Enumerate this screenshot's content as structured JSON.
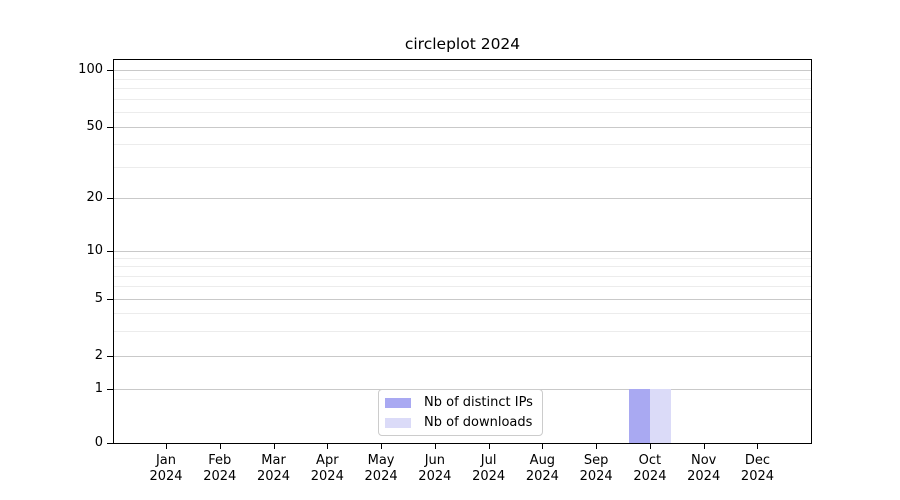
{
  "title": "circleplot 2024",
  "chart_data": {
    "type": "bar",
    "title": "circleplot 2024",
    "x": {
      "categories": [
        "Jan",
        "Feb",
        "Mar",
        "Apr",
        "May",
        "Jun",
        "Jul",
        "Aug",
        "Sep",
        "Oct",
        "Nov",
        "Dec"
      ],
      "year": "2024"
    },
    "y_axis": {
      "scale": "symlog",
      "major_ticks": [
        0,
        1,
        2,
        5,
        10,
        20,
        50,
        100
      ],
      "minor_ticks": [
        3,
        4,
        6,
        7,
        8,
        9,
        30,
        40,
        60,
        70,
        80,
        90
      ],
      "range": [
        0,
        113
      ],
      "grid": true
    },
    "series": [
      {
        "name": "Nb of distinct IPs",
        "color": "#a9a9f2",
        "values": [
          0,
          0,
          0,
          0,
          0,
          0,
          0,
          0,
          0,
          1,
          0,
          0
        ]
      },
      {
        "name": "Nb of downloads",
        "color": "#dbdbf8",
        "values": [
          0,
          0,
          0,
          0,
          0,
          0,
          0,
          0,
          0,
          1,
          0,
          0
        ]
      }
    ],
    "legend": {
      "position": "lower center",
      "entries": [
        "Nb of distinct IPs",
        "Nb of downloads"
      ]
    }
  },
  "colors": {
    "background": "#ffffff",
    "axis": "#000000",
    "major_grid": "#c9c9c9",
    "minor_grid": "#ececec",
    "legend_border": "#cccccc"
  }
}
